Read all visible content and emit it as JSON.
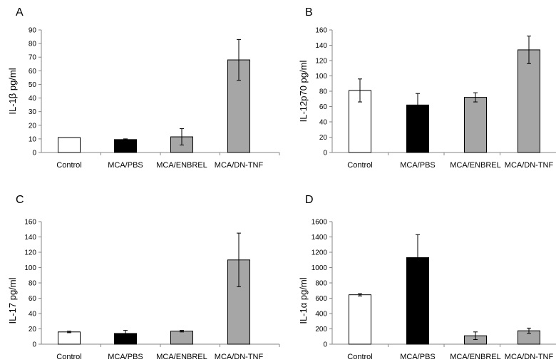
{
  "chart_data": [
    {
      "panel": "A",
      "type": "bar",
      "ylabel": "IL-1β pg/ml",
      "ylim": [
        0,
        90
      ],
      "yticks": [
        "0",
        "10",
        "20",
        "30",
        "40",
        "50",
        "60",
        "70",
        "80",
        "90"
      ],
      "categories": [
        "Control",
        "MCA/PBS",
        "MCA/ENBREL",
        "MCA/DN-TNF"
      ],
      "values": [
        11,
        9.5,
        11.5,
        68
      ],
      "errors": [
        0,
        0.5,
        6,
        15
      ],
      "colors": [
        "#ffffff",
        "#000000",
        "#a6a6a6",
        "#a6a6a6"
      ],
      "grid": false
    },
    {
      "panel": "B",
      "type": "bar",
      "ylabel": "IL-12p70 pg/ml",
      "ylim": [
        0,
        160
      ],
      "yticks": [
        "0",
        "20",
        "40",
        "60",
        "80",
        "100",
        "120",
        "140",
        "160"
      ],
      "categories": [
        "Control",
        "MCA/PBS",
        "MCA/ENBREL",
        "MCA/DN-TNF"
      ],
      "values": [
        81,
        62,
        72,
        134
      ],
      "errors": [
        15,
        15,
        6,
        18
      ],
      "colors": [
        "#ffffff",
        "#000000",
        "#a6a6a6",
        "#a6a6a6"
      ],
      "grid": false
    },
    {
      "panel": "C",
      "type": "bar",
      "ylabel": "IL-17 pg/ml",
      "ylim": [
        0,
        160
      ],
      "yticks": [
        "0",
        "20",
        "40",
        "60",
        "80",
        "100",
        "120",
        "140",
        "160"
      ],
      "categories": [
        "Control",
        "MCA/PBS",
        "MCA/ENBREL",
        "MCA/DN-TNF"
      ],
      "values": [
        16,
        14,
        17,
        110
      ],
      "errors": [
        1,
        4,
        1,
        35
      ],
      "colors": [
        "#ffffff",
        "#000000",
        "#a6a6a6",
        "#a6a6a6"
      ],
      "grid": false
    },
    {
      "panel": "D",
      "type": "bar",
      "ylabel": "IL-1α pg/ml",
      "ylim": [
        0,
        1600
      ],
      "yticks": [
        "0",
        "200",
        "400",
        "600",
        "800",
        "1000",
        "1200",
        "1400",
        "1600"
      ],
      "categories": [
        "Control",
        "MCA/PBS",
        "MCA/ENBREL",
        "MCA/DN-TNF"
      ],
      "values": [
        645,
        1130,
        110,
        175
      ],
      "errors": [
        15,
        300,
        50,
        35
      ],
      "colors": [
        "#ffffff",
        "#000000",
        "#a6a6a6",
        "#a6a6a6"
      ],
      "grid": false
    }
  ]
}
